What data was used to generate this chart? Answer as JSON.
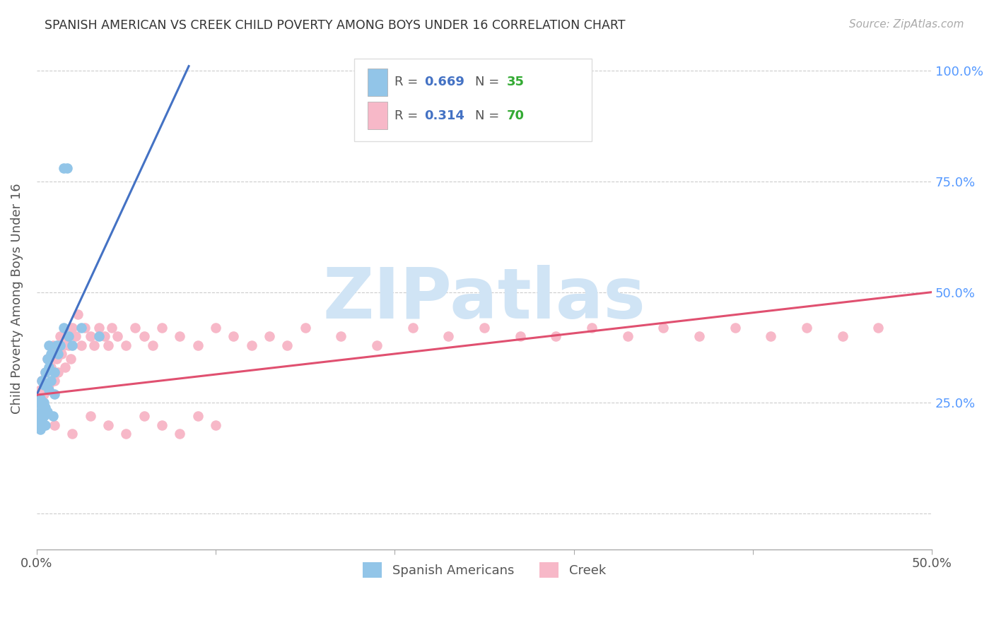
{
  "title": "SPANISH AMERICAN VS CREEK CHILD POVERTY AMONG BOYS UNDER 16 CORRELATION CHART",
  "source": "Source: ZipAtlas.com",
  "ylabel": "Child Poverty Among Boys Under 16",
  "xlim": [
    0.0,
    0.5
  ],
  "ylim": [
    -0.08,
    1.05
  ],
  "blue_R": "0.669",
  "blue_N": "35",
  "pink_R": "0.314",
  "pink_N": "70",
  "blue_color": "#92c5e8",
  "pink_color": "#f7b8c8",
  "blue_line_color": "#4472C4",
  "pink_line_color": "#E05070",
  "label_blue": "Spanish Americans",
  "label_pink": "Creek",
  "watermark_text": "ZIPatlas",
  "watermark_color": "#d0e4f5",
  "R_color": "#4472C4",
  "N_color": "#33aa33",
  "background_color": "#ffffff",
  "grid_color": "#cccccc",
  "blue_scatter_x": [
    0.001,
    0.001,
    0.001,
    0.002,
    0.002,
    0.002,
    0.003,
    0.003,
    0.003,
    0.004,
    0.004,
    0.004,
    0.005,
    0.005,
    0.005,
    0.006,
    0.006,
    0.007,
    0.007,
    0.007,
    0.008,
    0.008,
    0.009,
    0.01,
    0.01,
    0.011,
    0.012,
    0.013,
    0.015,
    0.018,
    0.02,
    0.025,
    0.035,
    0.015,
    0.017
  ],
  "blue_scatter_y": [
    0.2,
    0.22,
    0.25,
    0.19,
    0.23,
    0.26,
    0.21,
    0.24,
    0.3,
    0.22,
    0.25,
    0.29,
    0.2,
    0.24,
    0.32,
    0.23,
    0.35,
    0.28,
    0.33,
    0.38,
    0.3,
    0.36,
    0.22,
    0.27,
    0.32,
    0.38,
    0.36,
    0.38,
    0.42,
    0.4,
    0.38,
    0.42,
    0.4,
    0.78,
    0.78
  ],
  "pink_scatter_x": [
    0.001,
    0.002,
    0.003,
    0.004,
    0.005,
    0.006,
    0.007,
    0.008,
    0.009,
    0.01,
    0.011,
    0.012,
    0.013,
    0.014,
    0.015,
    0.016,
    0.017,
    0.018,
    0.019,
    0.02,
    0.022,
    0.023,
    0.025,
    0.027,
    0.03,
    0.032,
    0.035,
    0.038,
    0.04,
    0.042,
    0.045,
    0.05,
    0.055,
    0.06,
    0.065,
    0.07,
    0.08,
    0.09,
    0.1,
    0.11,
    0.12,
    0.13,
    0.14,
    0.15,
    0.17,
    0.19,
    0.21,
    0.23,
    0.25,
    0.27,
    0.29,
    0.31,
    0.33,
    0.35,
    0.37,
    0.39,
    0.41,
    0.43,
    0.45,
    0.47,
    0.01,
    0.02,
    0.03,
    0.04,
    0.05,
    0.06,
    0.07,
    0.08,
    0.09,
    0.1
  ],
  "pink_scatter_y": [
    0.25,
    0.28,
    0.3,
    0.27,
    0.32,
    0.35,
    0.29,
    0.33,
    0.38,
    0.3,
    0.35,
    0.32,
    0.4,
    0.36,
    0.38,
    0.33,
    0.4,
    0.38,
    0.35,
    0.42,
    0.4,
    0.45,
    0.38,
    0.42,
    0.4,
    0.38,
    0.42,
    0.4,
    0.38,
    0.42,
    0.4,
    0.38,
    0.42,
    0.4,
    0.38,
    0.42,
    0.4,
    0.38,
    0.42,
    0.4,
    0.38,
    0.4,
    0.38,
    0.42,
    0.4,
    0.38,
    0.42,
    0.4,
    0.42,
    0.4,
    0.4,
    0.42,
    0.4,
    0.42,
    0.4,
    0.42,
    0.4,
    0.42,
    0.4,
    0.42,
    0.2,
    0.18,
    0.22,
    0.2,
    0.18,
    0.22,
    0.2,
    0.18,
    0.22,
    0.2
  ],
  "blue_line_x": [
    0.0,
    0.085
  ],
  "blue_line_y": [
    0.268,
    1.01
  ],
  "pink_line_x": [
    0.0,
    0.5
  ],
  "pink_line_y": [
    0.268,
    0.5
  ]
}
